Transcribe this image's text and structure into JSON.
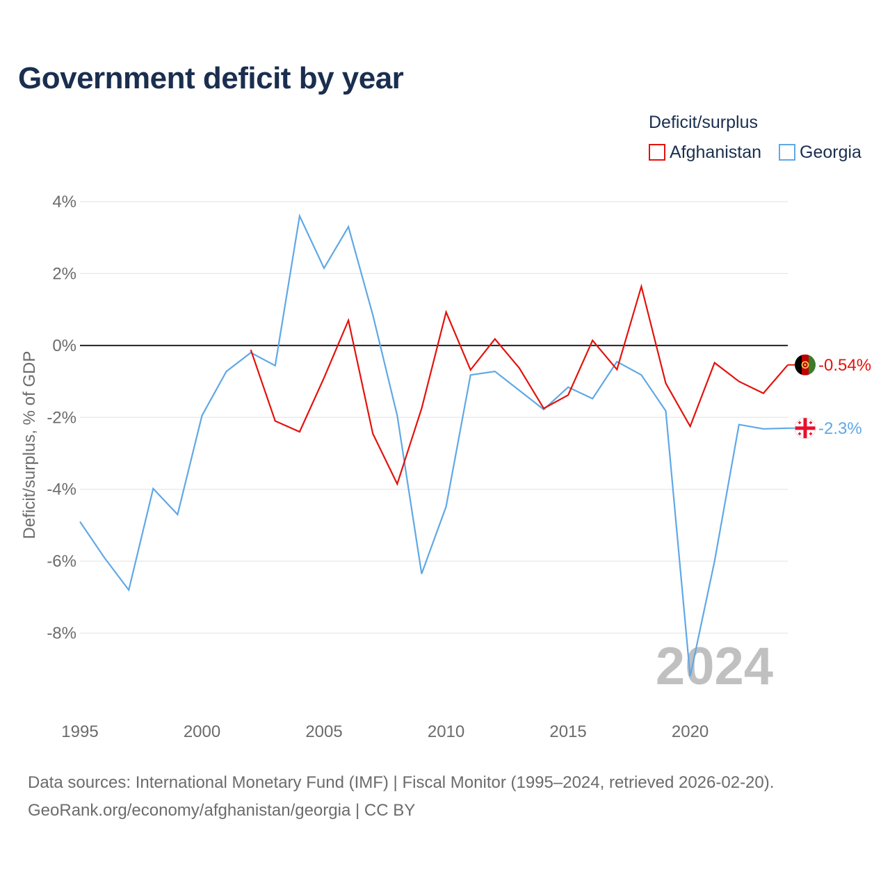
{
  "title": "Government deficit by year",
  "legend": {
    "title": "Deficit/surplus",
    "items": [
      {
        "label": "Afghanistan",
        "color": "#e3120b"
      },
      {
        "label": "Georgia",
        "color": "#5fa8e6"
      }
    ]
  },
  "source": {
    "line1": "Data sources: International Monetary Fund (IMF) | Fiscal Monitor (1995–2024, retrieved 2026-02-20).",
    "line2": "GeoRank.org/economy/afghanistan/georgia | CC BY"
  },
  "chart_data": {
    "type": "line",
    "title": "Government deficit by year",
    "xlabel": "",
    "ylabel": "Deficit/surplus, % of GDP",
    "xlim": [
      1995,
      2024
    ],
    "ylim": [
      -10,
      4
    ],
    "x_ticks": [
      1995,
      2000,
      2005,
      2010,
      2015,
      2020
    ],
    "y_ticks": [
      4,
      2,
      0,
      -2,
      -4,
      -6,
      -8
    ],
    "y_tick_labels": [
      "4%",
      "2%",
      "0%",
      "-2%",
      "-4%",
      "-6%",
      "-8%"
    ],
    "year_watermark": "2024",
    "series": [
      {
        "name": "Afghanistan",
        "color": "#e3120b",
        "end_label": "-0.54%",
        "flag_icon": "afghanistan-flag-icon",
        "x": [
          2002,
          2003,
          2004,
          2005,
          2006,
          2007,
          2008,
          2009,
          2010,
          2011,
          2012,
          2013,
          2014,
          2015,
          2016,
          2017,
          2018,
          2019,
          2020,
          2021,
          2022,
          2023,
          2024
        ],
        "values": [
          -0.12,
          -2.1,
          -2.4,
          -0.9,
          0.7,
          -2.45,
          -3.85,
          -1.75,
          0.93,
          -0.68,
          0.18,
          -0.63,
          -1.75,
          -1.38,
          0.14,
          -0.67,
          1.64,
          -1.05,
          -2.25,
          -0.48,
          -1.0,
          -1.33,
          -0.54
        ]
      },
      {
        "name": "Georgia",
        "color": "#5fa8e6",
        "end_label": "-2.3%",
        "flag_icon": "georgia-flag-icon",
        "x": [
          1995,
          1996,
          1997,
          1998,
          1999,
          2000,
          2001,
          2002,
          2003,
          2004,
          2005,
          2006,
          2007,
          2008,
          2009,
          2010,
          2011,
          2012,
          2013,
          2014,
          2015,
          2016,
          2017,
          2018,
          2019,
          2020,
          2021,
          2022,
          2023,
          2024
        ],
        "values": [
          -4.9,
          -5.9,
          -6.8,
          -3.98,
          -4.7,
          -1.95,
          -0.72,
          -0.2,
          -0.56,
          3.6,
          2.15,
          3.3,
          0.85,
          -1.95,
          -6.35,
          -4.48,
          -0.82,
          -0.72,
          -1.25,
          -1.78,
          -1.16,
          -1.48,
          -0.45,
          -0.82,
          -1.82,
          -9.2,
          -6.0,
          -2.2,
          -2.32,
          -2.3
        ]
      }
    ]
  }
}
